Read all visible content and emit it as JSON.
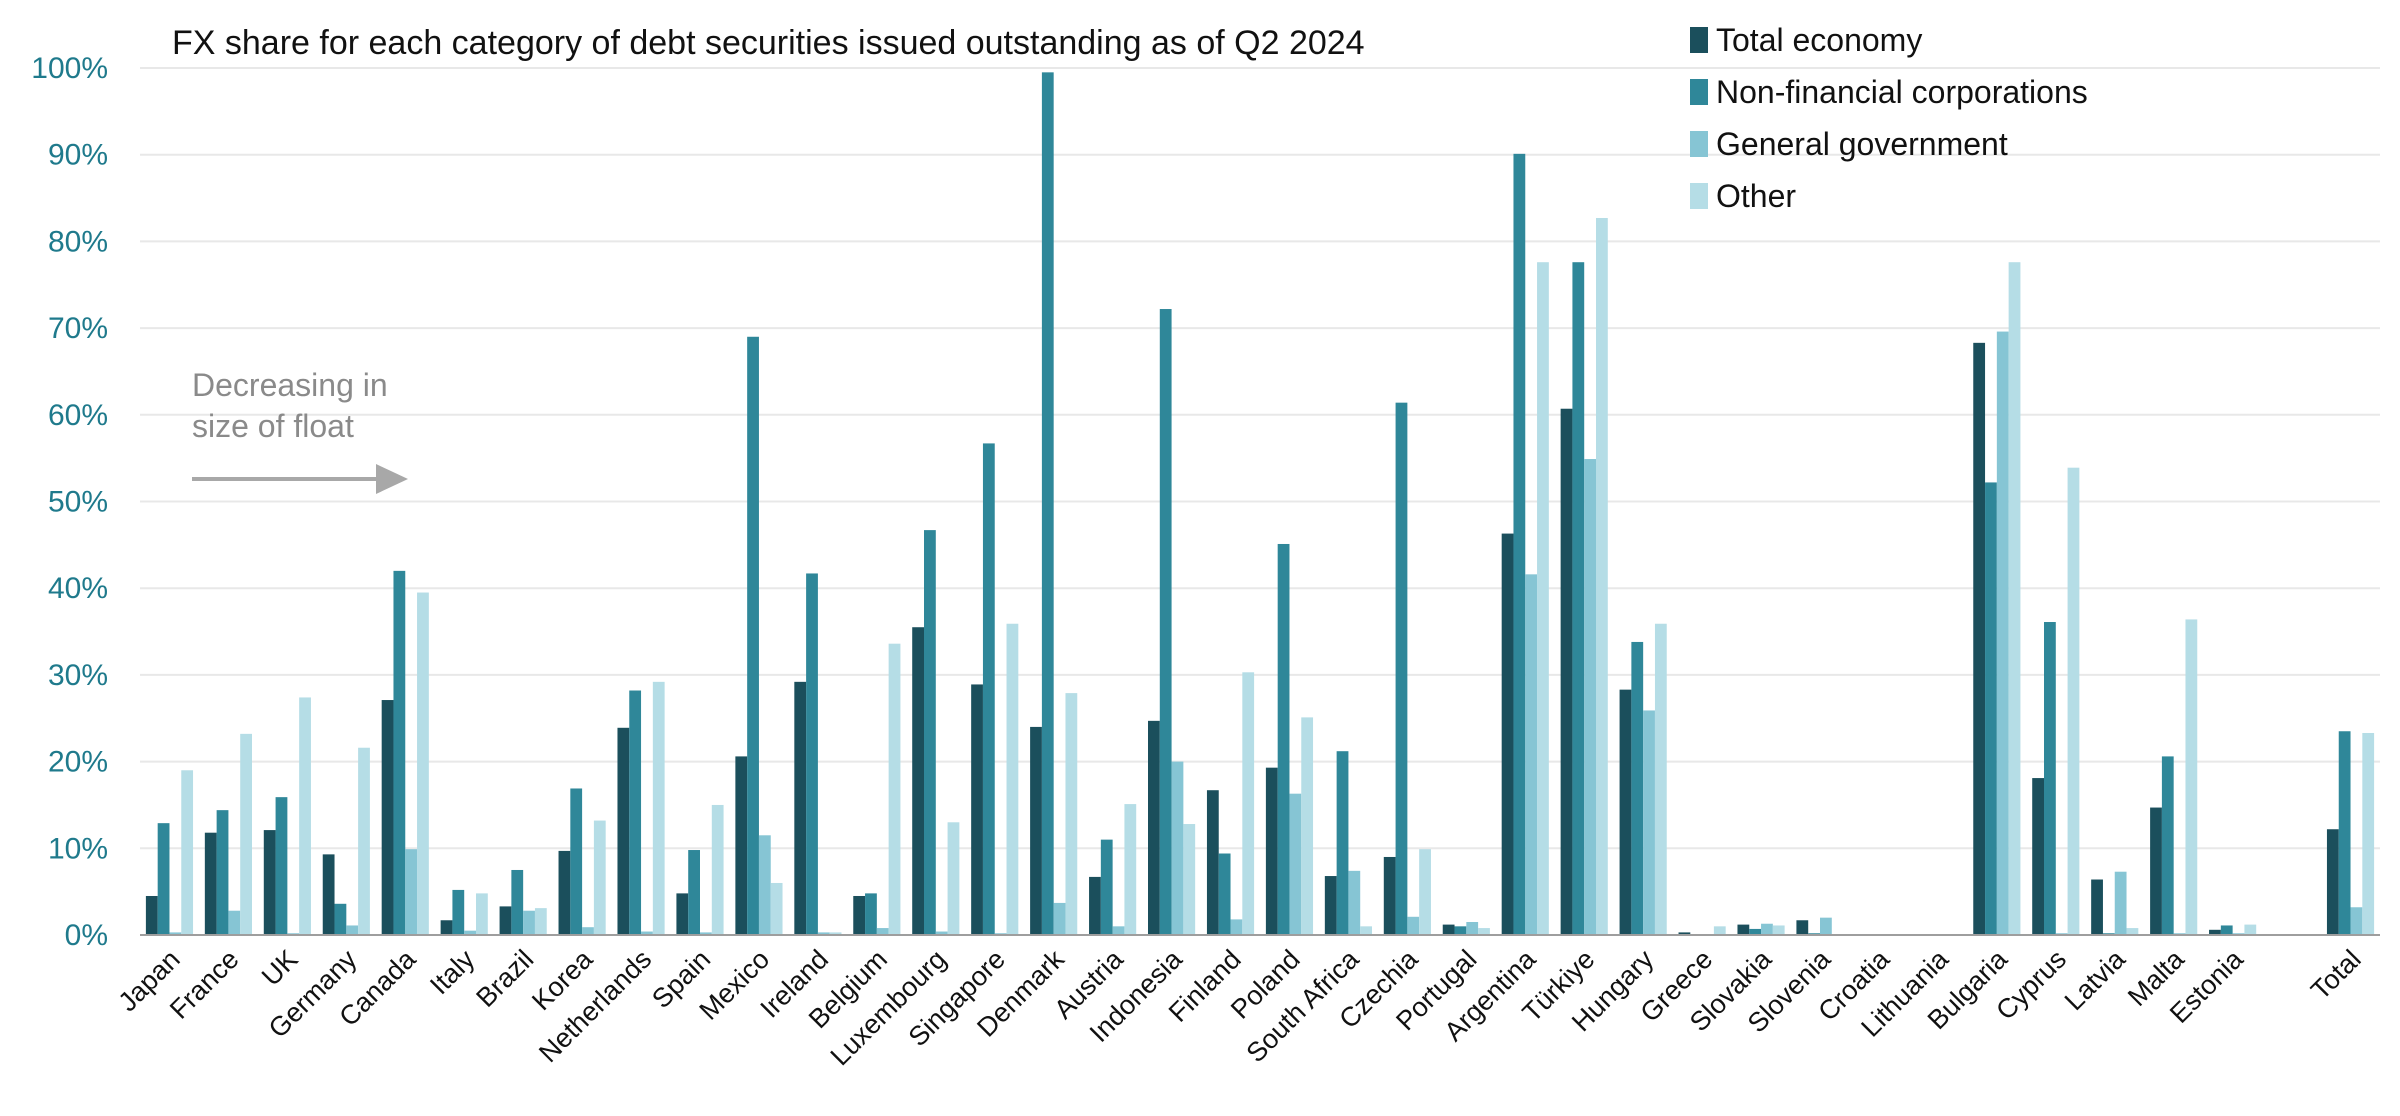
{
  "chart_data": {
    "type": "bar",
    "title": "FX share for each category of debt securities issued outstanding as of Q2 2024",
    "xlabel": "",
    "ylabel": "",
    "ylim": [
      0,
      100
    ],
    "yticks": [
      "0%",
      "10%",
      "20%",
      "30%",
      "40%",
      "50%",
      "60%",
      "70%",
      "80%",
      "90%",
      "100%"
    ],
    "grid": true,
    "legend_position": "top-right",
    "annotation": {
      "line1": "Decreasing in",
      "line2": "size of float"
    },
    "categories": [
      "Japan",
      "France",
      "UK",
      "Germany",
      "Canada",
      "Italy",
      "Brazil",
      "Korea",
      "Netherlands",
      "Spain",
      "Mexico",
      "Ireland",
      "Belgium",
      "Luxembourg",
      "Singapore",
      "Denmark",
      "Austria",
      "Indonesia",
      "Finland",
      "Poland",
      "South Africa",
      "Czechia",
      "Portugal",
      "Argentina",
      "Türkiye",
      "Hungary",
      "Greece",
      "Slovakia",
      "Slovenia",
      "Croatia",
      "Lithuania",
      "Bulgaria",
      "Cyprus",
      "Latvia",
      "Malta",
      "Estonia",
      "Total"
    ],
    "category_gap_after": [
      35
    ],
    "series": [
      {
        "name": "Total economy",
        "color": "#1b4f5c",
        "values": [
          4.5,
          11.8,
          12.1,
          9.3,
          27.1,
          1.7,
          3.3,
          9.7,
          23.9,
          4.8,
          20.6,
          29.2,
          4.5,
          35.5,
          28.9,
          24.0,
          6.7,
          24.7,
          16.7,
          19.3,
          6.8,
          9.0,
          1.2,
          46.3,
          60.7,
          28.3,
          0.3,
          1.2,
          1.7,
          0.1,
          0.1,
          68.3,
          18.1,
          6.4,
          14.7,
          0.6,
          12.2
        ]
      },
      {
        "name": "Non-financial corporations",
        "color": "#2f8799",
        "values": [
          12.9,
          14.4,
          15.9,
          3.6,
          42.0,
          5.2,
          7.5,
          16.9,
          28.2,
          9.8,
          69.0,
          41.7,
          4.8,
          46.7,
          56.7,
          99.5,
          11.0,
          72.2,
          9.4,
          45.1,
          21.2,
          61.4,
          1.0,
          90.1,
          77.6,
          33.8,
          0.1,
          0.7,
          0.2,
          0.1,
          0.1,
          52.2,
          36.1,
          0.2,
          20.6,
          1.1,
          23.5
        ]
      },
      {
        "name": "General government",
        "color": "#86c5d4",
        "values": [
          0.3,
          2.8,
          0.2,
          1.1,
          9.9,
          0.5,
          2.8,
          0.9,
          0.4,
          0.3,
          11.5,
          0.3,
          0.8,
          0.4,
          0.2,
          3.7,
          1.0,
          20.0,
          1.8,
          16.3,
          7.4,
          2.1,
          1.5,
          41.6,
          54.9,
          25.9,
          0.1,
          1.3,
          2.0,
          0.1,
          0.1,
          69.6,
          0.2,
          7.3,
          0.2,
          0.2,
          3.2
        ]
      },
      {
        "name": "Other",
        "color": "#b5dde6",
        "values": [
          19.0,
          23.2,
          27.4,
          21.6,
          39.5,
          4.8,
          3.1,
          13.2,
          29.2,
          15.0,
          6.0,
          0.3,
          33.6,
          13.0,
          35.9,
          27.9,
          15.1,
          12.8,
          30.3,
          25.1,
          1.0,
          9.9,
          0.8,
          77.6,
          82.7,
          35.9,
          1.0,
          1.1,
          0.1,
          0.1,
          0.1,
          77.6,
          53.9,
          0.8,
          36.4,
          1.2,
          23.3
        ]
      }
    ]
  }
}
